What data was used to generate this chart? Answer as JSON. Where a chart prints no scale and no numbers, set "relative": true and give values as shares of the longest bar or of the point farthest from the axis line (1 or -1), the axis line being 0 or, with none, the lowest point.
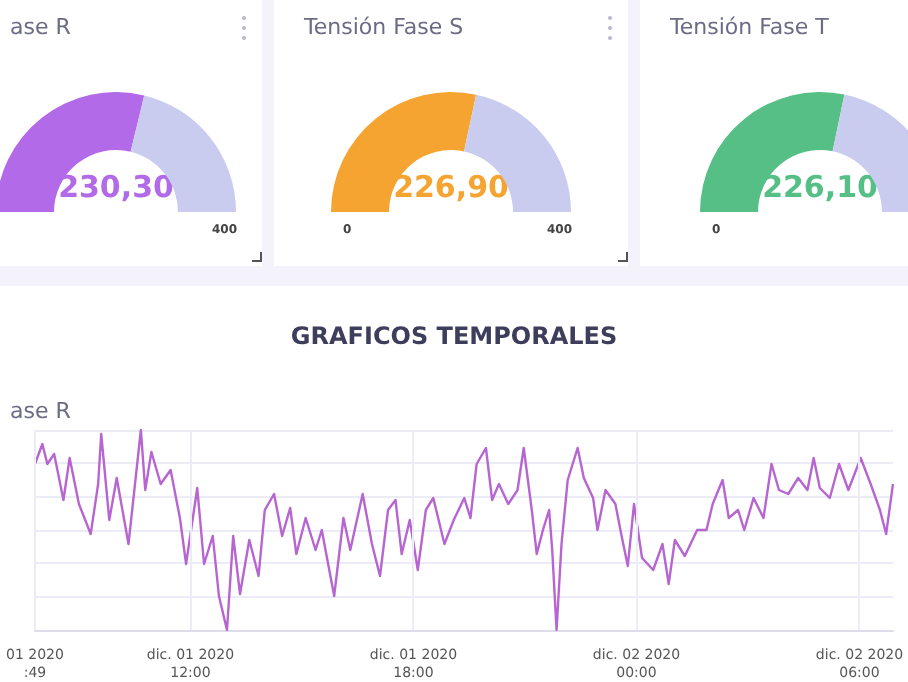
{
  "chart_data": [
    {
      "type": "donut",
      "title": "ase R",
      "categories": [
        null,
        null
      ],
      "values": [
        230.3,
        169.7
      ],
      "colors": [
        "#b36ae8",
        "#c9ccef"
      ],
      "value_labels": [
        "230,30",
        null
      ],
      "annotations": [
        "400"
      ]
    },
    {
      "type": "donut",
      "title": "Tensión Fase S",
      "categories": [
        null,
        null
      ],
      "values": [
        226.9,
        173.1
      ],
      "colors": [
        "#f5a431",
        "#c9ccef"
      ],
      "value_labels": [
        "226,90",
        null
      ],
      "annotations": [
        "0",
        "400"
      ]
    },
    {
      "type": "donut",
      "title": "Tensión Fase T",
      "categories": [
        null,
        null
      ],
      "values": [
        226.1,
        173.9
      ],
      "colors": [
        "#55bf86",
        "#c9ccef"
      ],
      "value_labels": [
        "226,10",
        null
      ],
      "annotations": [
        "0"
      ]
    },
    {
      "type": "line",
      "title": "GRAFICOS TEMPORALES",
      "subtitle": "ase R",
      "relative": true,
      "grid": true,
      "marker": "none",
      "xlim": [
        "2020-12-01T07:49",
        "2020-12-02T06:54"
      ],
      "xticks": [
        {
          "value": "2020-12-01T07:49",
          "label": "01 2020\n:49"
        },
        {
          "value": "2020-12-01T12:00",
          "label": "dic. 01 2020\n12:00"
        },
        {
          "value": "2020-12-01T18:00",
          "label": "dic. 01 2020\n18:00"
        },
        {
          "value": "2020-12-02T00:00",
          "label": "dic. 02 2020\n00:00"
        },
        {
          "value": "2020-12-02T06:00",
          "label": "dic. 02 2020\n06:00"
        }
      ],
      "x": [
        "2020-12-01T07:49",
        "2020-12-01T08:01",
        "2020-12-01T08:09",
        "2020-12-01T08:20",
        "2020-12-01T08:35",
        "2020-12-01T08:45",
        "2020-12-01T09:00",
        "2020-12-01T09:19",
        "2020-12-01T09:31",
        "2020-12-01T09:36",
        "2020-12-01T09:49",
        "2020-12-01T10:01",
        "2020-12-01T10:20",
        "2020-12-01T10:40",
        "2020-12-01T10:47",
        "2020-12-01T10:57",
        "2020-12-01T11:12",
        "2020-12-01T11:28",
        "2020-12-01T11:43",
        "2020-12-01T11:53",
        "2020-12-01T12:11",
        "2020-12-01T12:22",
        "2020-12-01T12:36",
        "2020-12-01T12:46",
        "2020-12-01T12:59",
        "2020-12-01T13:09",
        "2020-12-01T13:20",
        "2020-12-01T13:35",
        "2020-12-01T13:50",
        "2020-12-01T14:00",
        "2020-12-01T14:15",
        "2020-12-01T14:28",
        "2020-12-01T14:41",
        "2020-12-01T14:51",
        "2020-12-01T15:06",
        "2020-12-01T15:22",
        "2020-12-01T15:32",
        "2020-12-01T15:52",
        "2020-12-01T16:07",
        "2020-12-01T16:18",
        "2020-12-01T16:38",
        "2020-12-01T16:53",
        "2020-12-01T17:06",
        "2020-12-01T17:19",
        "2020-12-01T17:31",
        "2020-12-01T17:41",
        "2020-12-01T17:54",
        "2020-12-01T18:07",
        "2020-12-01T18:20",
        "2020-12-01T18:32",
        "2020-12-01T18:50",
        "2020-12-01T19:05",
        "2020-12-01T19:22",
        "2020-12-01T19:32",
        "2020-12-01T19:42",
        "2020-12-01T19:57",
        "2020-12-01T20:07",
        "2020-12-01T20:18",
        "2020-12-01T20:33",
        "2020-12-01T20:48",
        "2020-12-01T20:58",
        "2020-12-01T21:11",
        "2020-12-01T21:19",
        "2020-12-01T21:29",
        "2020-12-01T21:39",
        "2020-12-01T21:44",
        "2020-12-01T21:51",
        "2020-12-01T21:59",
        "2020-12-01T22:09",
        "2020-12-01T22:25",
        "2020-12-01T22:35",
        "2020-12-01T22:50",
        "2020-12-01T22:57",
        "2020-12-01T23:10",
        "2020-12-01T23:26",
        "2020-12-01T23:36",
        "2020-12-01T23:46",
        "2020-12-01T23:56",
        "2020-12-02T00:09",
        "2020-12-02T00:27",
        "2020-12-02T00:42",
        "2020-12-02T00:52",
        "2020-12-02T01:02",
        "2020-12-02T01:18",
        "2020-12-02T01:38",
        "2020-12-02T01:53",
        "2020-12-02T02:03",
        "2020-12-02T02:19",
        "2020-12-02T02:29",
        "2020-12-02T02:44",
        "2020-12-02T02:54",
        "2020-12-02T03:09",
        "2020-12-02T03:25",
        "2020-12-02T03:38",
        "2020-12-02T03:50",
        "2020-12-02T04:05",
        "2020-12-02T04:21",
        "2020-12-02T04:36",
        "2020-12-02T04:46",
        "2020-12-02T04:56",
        "2020-12-02T05:12",
        "2020-12-02T05:27",
        "2020-12-02T05:42",
        "2020-12-02T06:02",
        "2020-12-02T06:18",
        "2020-12-02T06:33",
        "2020-12-02T06:43",
        "2020-12-02T06:54"
      ],
      "series": [
        {
          "color": "#b765d0",
          "values": [
            0.83,
            0.93,
            0.83,
            0.88,
            0.65,
            0.86,
            0.63,
            0.48,
            0.73,
            0.98,
            0.55,
            0.76,
            0.43,
            1,
            0.7,
            0.89,
            0.73,
            0.8,
            0.56,
            0.33,
            0.71,
            0.33,
            0.47,
            0.17,
            0,
            0.47,
            0.18,
            0.45,
            0.27,
            0.6,
            0.68,
            0.47,
            0.61,
            0.38,
            0.56,
            0.4,
            0.5,
            0.17,
            0.56,
            0.4,
            0.68,
            0.43,
            0.27,
            0.6,
            0.65,
            0.38,
            0.55,
            0.3,
            0.6,
            0.66,
            0.43,
            0.55,
            0.66,
            0.56,
            0.83,
            0.91,
            0.65,
            0.73,
            0.63,
            0.7,
            0.91,
            0.6,
            0.38,
            0.5,
            0.6,
            0.4,
            0,
            0.43,
            0.75,
            0.91,
            0.76,
            0.66,
            0.5,
            0.7,
            0.63,
            0.47,
            0.32,
            0.63,
            0.36,
            0.3,
            0.43,
            0.23,
            0.45,
            0.37,
            0.5,
            0.5,
            0.63,
            0.75,
            0.56,
            0.6,
            0.5,
            0.66,
            0.56,
            0.83,
            0.7,
            0.68,
            0.76,
            0.7,
            0.86,
            0.71,
            0.66,
            0.83,
            0.7,
            0.86,
            0.73,
            0.6,
            0.48,
            0.73
          ]
        }
      ]
    }
  ]
}
